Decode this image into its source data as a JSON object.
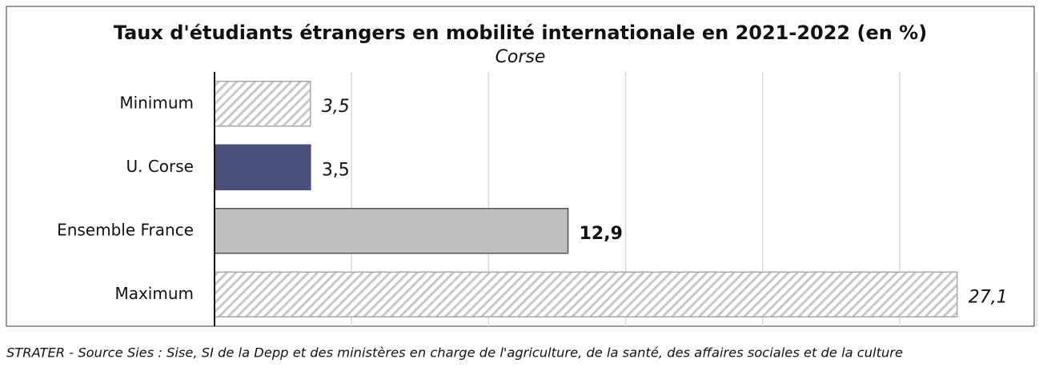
{
  "chart_data": {
    "type": "bar",
    "orientation": "horizontal",
    "title": "Taux d'étudiants étrangers en mobilité internationale en 2021-2022 (en %)",
    "subtitle": "Corse",
    "categories": [
      "Minimum",
      "U. Corse",
      "Ensemble France",
      "Maximum"
    ],
    "values": [
      3.5,
      3.5,
      12.9,
      27.1
    ],
    "value_labels": [
      "3,5",
      "3,5",
      "12,9",
      "27,1"
    ],
    "colors": [
      "#c8c8c8",
      "#4a4e7a",
      "#bfbfbf",
      "#c8c8c8"
    ],
    "hatched": [
      true,
      false,
      false,
      true
    ],
    "xlim": [
      0,
      30
    ],
    "xticks": [
      0,
      5,
      10,
      15,
      20,
      25,
      30
    ],
    "grid": true,
    "source": "STRATER - Source Sies : Sise, SI de la Depp et des ministères en charge de l'agriculture, de la santé, des affaires sociales et de la culture"
  }
}
